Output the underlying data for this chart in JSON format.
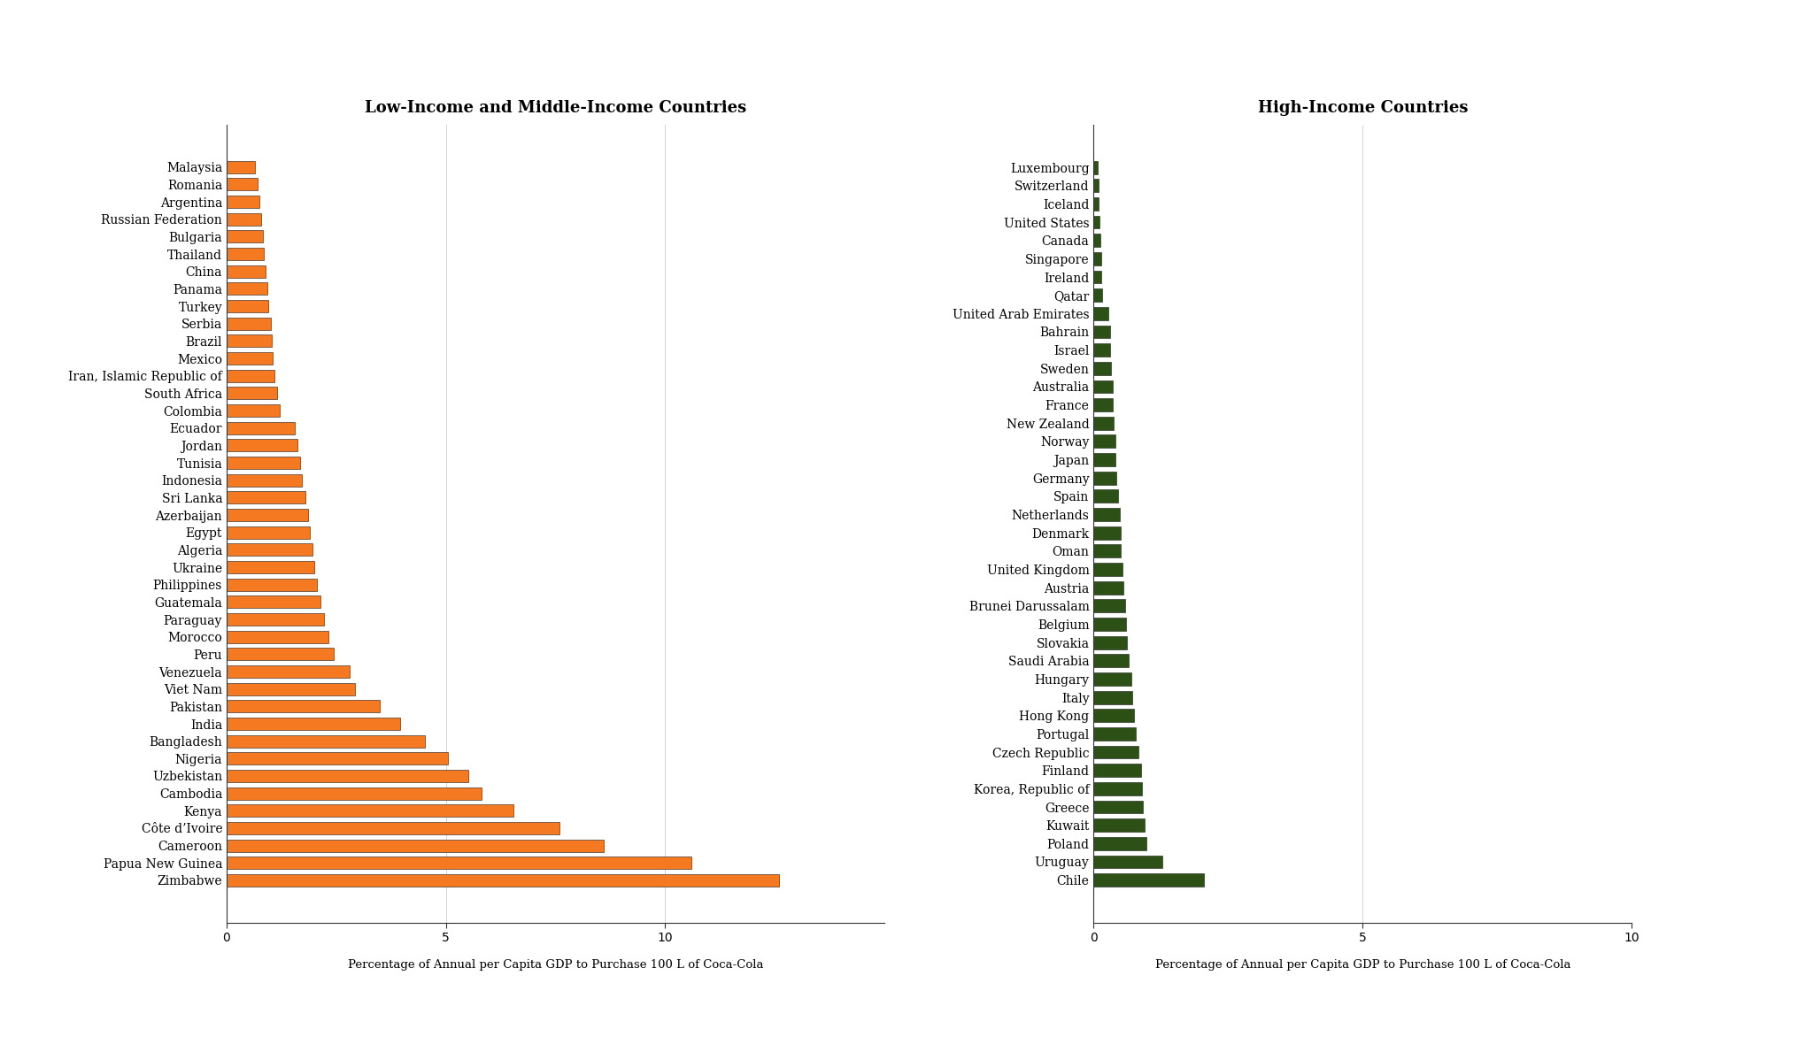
{
  "lmic_countries": [
    "Malaysia",
    "Romania",
    "Argentina",
    "Russian Federation",
    "Bulgaria",
    "Thailand",
    "China",
    "Panama",
    "Turkey",
    "Serbia",
    "Brazil",
    "Mexico",
    "Iran, Islamic Republic of",
    "South Africa",
    "Colombia",
    "Ecuador",
    "Jordan",
    "Tunisia",
    "Indonesia",
    "Sri Lanka",
    "Azerbaijan",
    "Egypt",
    "Algeria",
    "Ukraine",
    "Philippines",
    "Guatemala",
    "Paraguay",
    "Morocco",
    "Peru",
    "Venezuela",
    "Viet Nam",
    "Pakistan",
    "India",
    "Bangladesh",
    "Nigeria",
    "Uzbekistan",
    "Cambodia",
    "Kenya",
    "Côte d’Ivoire",
    "Cameroon",
    "Papua New Guinea",
    "Zimbabwe"
  ],
  "lmic_values": [
    0.65,
    0.7,
    0.75,
    0.78,
    0.82,
    0.85,
    0.88,
    0.92,
    0.95,
    1.0,
    1.02,
    1.05,
    1.1,
    1.15,
    1.22,
    1.55,
    1.62,
    1.68,
    1.72,
    1.8,
    1.85,
    1.9,
    1.95,
    2.0,
    2.05,
    2.15,
    2.22,
    2.32,
    2.45,
    2.8,
    2.92,
    3.5,
    3.95,
    4.52,
    5.05,
    5.52,
    5.82,
    6.55,
    7.6,
    8.6,
    10.6,
    12.6
  ],
  "hic_countries": [
    "Luxembourg",
    "Switzerland",
    "Iceland",
    "United States",
    "Canada",
    "Singapore",
    "Ireland",
    "Qatar",
    "United Arab Emirates",
    "Bahrain",
    "Israel",
    "Sweden",
    "Australia",
    "France",
    "New Zealand",
    "Norway",
    "Japan",
    "Germany",
    "Spain",
    "Netherlands",
    "Denmark",
    "Oman",
    "United Kingdom",
    "Austria",
    "Brunei Darussalam",
    "Belgium",
    "Slovakia",
    "Saudi Arabia",
    "Hungary",
    "Italy",
    "Hong Kong",
    "Portugal",
    "Czech Republic",
    "Finland",
    "Korea, Republic of",
    "Greece",
    "Kuwait",
    "Poland",
    "Uruguay",
    "Chile"
  ],
  "hic_values": [
    0.07,
    0.09,
    0.1,
    0.11,
    0.13,
    0.14,
    0.15,
    0.16,
    0.28,
    0.3,
    0.31,
    0.33,
    0.35,
    0.36,
    0.38,
    0.4,
    0.41,
    0.43,
    0.46,
    0.48,
    0.5,
    0.51,
    0.53,
    0.55,
    0.58,
    0.6,
    0.62,
    0.65,
    0.7,
    0.72,
    0.75,
    0.78,
    0.83,
    0.88,
    0.9,
    0.92,
    0.95,
    0.98,
    1.28,
    2.05
  ],
  "lmic_color": "#F47920",
  "hic_color": "#2D5016",
  "bar_edgecolor": "#1a1a1a",
  "title_lmic": "Low-Income and Middle-Income Countries",
  "title_hic": "High-Income Countries",
  "xlabel": "Percentage of Annual per Capita GDP to Purchase 100 L of Coca-Cola",
  "xlim_lmic": [
    0,
    15
  ],
  "xlim_hic": [
    0,
    10
  ],
  "xticks_lmic": [
    0,
    5,
    10
  ],
  "xticks_hic": [
    0,
    5,
    10
  ],
  "label_fontsize": 10,
  "title_fontsize": 13,
  "xlabel_fontsize": 9.5
}
